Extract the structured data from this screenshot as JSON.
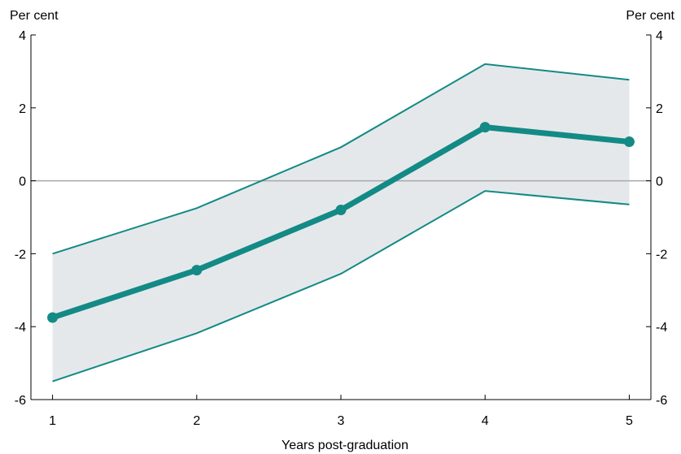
{
  "chart_data": {
    "type": "line",
    "x": [
      1,
      2,
      3,
      4,
      5
    ],
    "series": [
      {
        "role": "estimate",
        "values": [
          -3.75,
          -2.45,
          -0.8,
          1.47,
          1.07
        ]
      },
      {
        "role": "upper-bound",
        "values": [
          -2.0,
          -0.75,
          0.92,
          3.2,
          2.77
        ]
      },
      {
        "role": "lower-bound",
        "values": [
          -5.5,
          -4.18,
          -2.55,
          -0.28,
          -0.65
        ]
      }
    ],
    "xlabel": "Years post-graduation",
    "ylabel_left": "Per cent",
    "ylabel_right": "Per cent",
    "ylim": [
      -6,
      4
    ],
    "xlim": [
      0.85,
      5.15
    ],
    "yticks": [
      4,
      2,
      0,
      -2,
      -4,
      -6
    ],
    "xticks": [
      1,
      2,
      3,
      4,
      5
    ],
    "zero_line": true,
    "grid": false,
    "colors": {
      "line": "#138a85",
      "band": "#e5e8eb",
      "zero": "#a8a8a8",
      "axis": "#000000"
    }
  }
}
